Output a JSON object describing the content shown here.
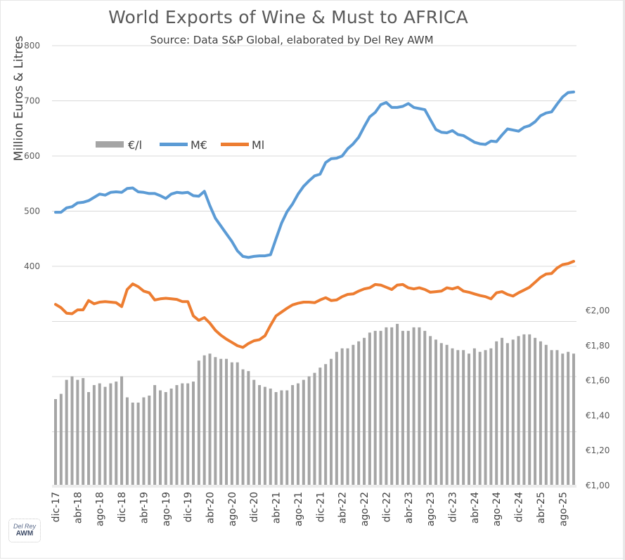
{
  "chart_data": {
    "type": "bar+line",
    "title": "World Exports of Wine & Must to AFRICA",
    "subtitle": "Source: Data S&P Global, elaborated by Del Rey AWM",
    "ylabel": "Million Euros & Litres",
    "ylabel_right": "",
    "xlabel": "",
    "ylim": [
      0,
      800
    ],
    "y_ticks": [
      "800",
      "700",
      "600",
      "500",
      "400"
    ],
    "y_gridlines": [
      0,
      100,
      200,
      300,
      400,
      500,
      600,
      700,
      800
    ],
    "y2lim": [
      1.0,
      2.0
    ],
    "y2_ticks": [
      "€2,00",
      "€1,80",
      "€1,60",
      "€1,40",
      "€1,20",
      "€1,00"
    ],
    "grid": true,
    "legend_position": "upper-left-inside",
    "x_tick_labels": [
      "dic-17",
      "abr-18",
      "ago-18",
      "dic-18",
      "abr-19",
      "ago-19",
      "dic-19",
      "abr-20",
      "ago-20",
      "dic-20",
      "abr-21",
      "ago-21",
      "dic-21",
      "abr-22",
      "ago-22",
      "dic-22",
      "abr-23",
      "ago-23",
      "dic-23",
      "abr-24",
      "ago-24",
      "dic-24",
      "abr-25",
      "ago-25"
    ],
    "x_start": "dic-17",
    "x_end": "oct-25",
    "n_points": 95,
    "series": [
      {
        "name": "€/l",
        "type": "bar",
        "axis": "right",
        "color": "#a5a5a5",
        "values": [
          1.49,
          1.52,
          1.6,
          1.62,
          1.6,
          1.61,
          1.53,
          1.57,
          1.58,
          1.56,
          1.58,
          1.59,
          1.62,
          1.5,
          1.47,
          1.47,
          1.5,
          1.51,
          1.57,
          1.54,
          1.53,
          1.55,
          1.57,
          1.58,
          1.58,
          1.59,
          1.71,
          1.74,
          1.75,
          1.73,
          1.72,
          1.72,
          1.7,
          1.7,
          1.66,
          1.65,
          1.6,
          1.57,
          1.56,
          1.55,
          1.53,
          1.54,
          1.54,
          1.57,
          1.58,
          1.6,
          1.62,
          1.64,
          1.67,
          1.69,
          1.72,
          1.76,
          1.78,
          1.78,
          1.8,
          1.82,
          1.84,
          1.87,
          1.88,
          1.88,
          1.9,
          1.9,
          1.92,
          1.88,
          1.88,
          1.9,
          1.9,
          1.88,
          1.85,
          1.83,
          1.81,
          1.8,
          1.78,
          1.77,
          1.77,
          1.75,
          1.78,
          1.76,
          1.77,
          1.78,
          1.82,
          1.84,
          1.81,
          1.83,
          1.85,
          1.86,
          1.86,
          1.84,
          1.82,
          1.8,
          1.77,
          1.77,
          1.75,
          1.76,
          1.75
        ]
      },
      {
        "name": "M€",
        "type": "line",
        "axis": "left",
        "color": "#5b9bd5",
        "values": [
          498,
          498,
          506,
          508,
          515,
          516,
          519,
          525,
          531,
          529,
          534,
          535,
          534,
          541,
          542,
          535,
          534,
          532,
          532,
          528,
          523,
          531,
          534,
          533,
          534,
          528,
          527,
          536,
          510,
          487,
          473,
          459,
          445,
          428,
          418,
          416,
          418,
          419,
          419,
          421,
          450,
          478,
          499,
          513,
          531,
          545,
          555,
          564,
          567,
          588,
          595,
          596,
          600,
          613,
          622,
          634,
          653,
          671,
          679,
          693,
          697,
          688,
          688,
          690,
          695,
          688,
          686,
          684,
          666,
          648,
          643,
          642,
          646,
          639,
          637,
          631,
          625,
          622,
          621,
          627,
          626,
          638,
          649,
          647,
          645,
          652,
          655,
          662,
          673,
          678,
          680,
          694,
          707,
          715,
          716
        ]
      },
      {
        "name": "Ml",
        "type": "line",
        "axis": "left",
        "color": "#ed7d31",
        "values": [
          331,
          325,
          315,
          314,
          321,
          321,
          338,
          332,
          335,
          336,
          335,
          334,
          327,
          358,
          368,
          363,
          355,
          352,
          339,
          341,
          342,
          341,
          340,
          336,
          336,
          310,
          302,
          307,
          297,
          284,
          275,
          268,
          262,
          256,
          253,
          260,
          265,
          267,
          274,
          293,
          310,
          317,
          324,
          330,
          333,
          335,
          335,
          334,
          339,
          343,
          338,
          339,
          345,
          349,
          350,
          355,
          359,
          361,
          367,
          366,
          362,
          358,
          366,
          367,
          361,
          359,
          361,
          358,
          353,
          354,
          355,
          361,
          359,
          362,
          355,
          353,
          350,
          347,
          345,
          341,
          352,
          354,
          349,
          346,
          352,
          357,
          362,
          371,
          380,
          386,
          387,
          397,
          403,
          405,
          409
        ]
      }
    ]
  },
  "legend": {
    "items": [
      "€/l",
      "M€",
      "Ml"
    ]
  },
  "logo": {
    "line1": "Del Rey",
    "line2": "AWM"
  }
}
